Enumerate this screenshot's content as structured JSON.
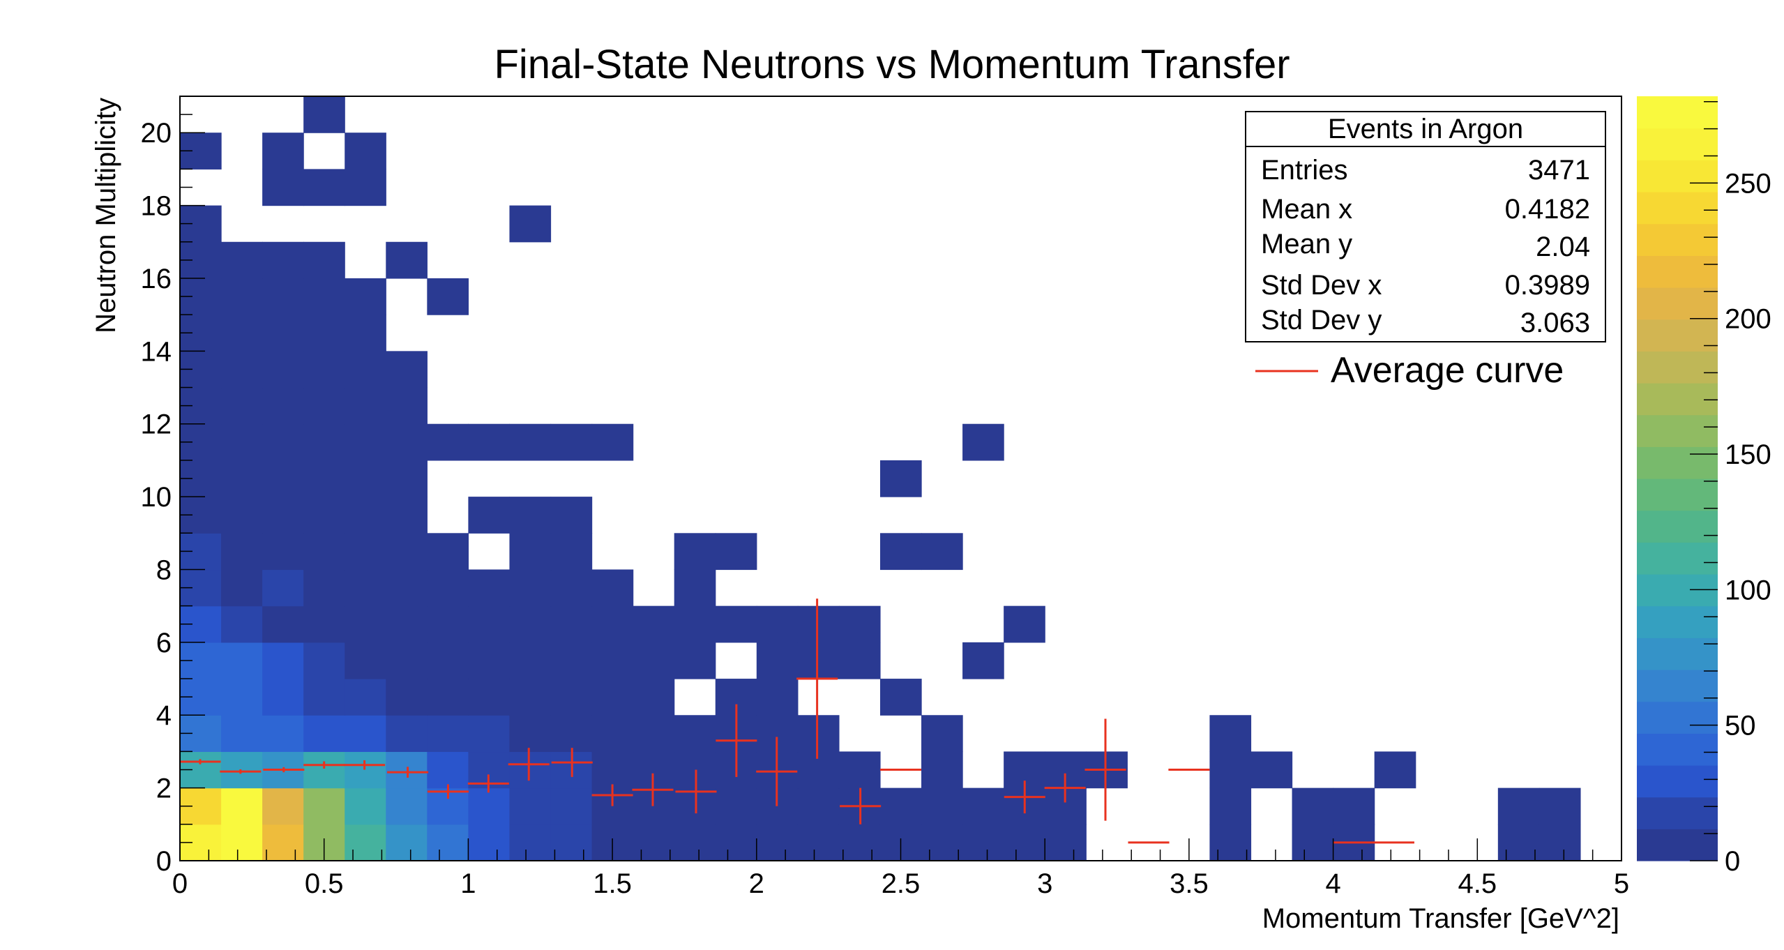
{
  "chart_data": {
    "type": "heatmap",
    "title": "Final-State Neutrons vs Momentum Transfer",
    "xlabel": "Momentum Transfer [GeV^2]",
    "ylabel": "Neutron Multiplicity",
    "xlim": [
      0,
      5
    ],
    "ylim": [
      0,
      21
    ],
    "x_bin_width": 0.142857,
    "y_bin_width": 1,
    "x_ticks": [
      0,
      0.5,
      1,
      1.5,
      2,
      2.5,
      3,
      3.5,
      4,
      4.5,
      5
    ],
    "x_tick_labels": [
      "0",
      "0.5",
      "1",
      "1.5",
      "2",
      "2.5",
      "3",
      "3.5",
      "4",
      "4.5",
      "5"
    ],
    "y_ticks": [
      0,
      2,
      4,
      6,
      8,
      10,
      12,
      14,
      16,
      18,
      20
    ],
    "y_tick_labels": [
      "0",
      "2",
      "4",
      "6",
      "8",
      "10",
      "12",
      "14",
      "16",
      "18",
      "20"
    ],
    "z_range": [
      0,
      282
    ],
    "z_ticks": [
      0,
      50,
      100,
      150,
      200,
      250
    ],
    "z_tick_labels": [
      "0",
      "50",
      "100",
      "150",
      "200",
      "250"
    ],
    "palette": [
      "#2a3a92",
      "#2a45aa",
      "#2a55cc",
      "#2e66d4",
      "#3275d3",
      "#3584cf",
      "#3593c8",
      "#35a0c0",
      "#3aabb0",
      "#45b29e",
      "#52b58a",
      "#63b87a",
      "#78ba6c",
      "#90bb62",
      "#a8ba5a",
      "#bfb757",
      "#d2b552",
      "#e2b548",
      "#eebc3c",
      "#f4c935",
      "#f7d833",
      "#f8e735",
      "#f9f23a",
      "#f9f93e"
    ],
    "bins": [
      [
        0,
        0,
        260
      ],
      [
        1,
        0,
        282
      ],
      [
        2,
        0,
        215
      ],
      [
        3,
        0,
        160
      ],
      [
        4,
        0,
        110
      ],
      [
        5,
        0,
        75
      ],
      [
        6,
        0,
        50
      ],
      [
        7,
        0,
        35
      ],
      [
        8,
        0,
        22
      ],
      [
        9,
        0,
        18
      ],
      [
        10,
        0,
        8
      ],
      [
        11,
        0,
        5
      ],
      [
        12,
        0,
        4
      ],
      [
        13,
        0,
        3
      ],
      [
        14,
        0,
        2
      ],
      [
        15,
        0,
        1
      ],
      [
        16,
        0,
        1
      ],
      [
        17,
        0,
        1
      ],
      [
        18,
        0,
        1
      ],
      [
        19,
        0,
        1
      ],
      [
        20,
        0,
        1
      ],
      [
        21,
        0,
        1
      ],
      [
        25,
        0,
        1
      ],
      [
        27,
        0,
        1
      ],
      [
        28,
        0,
        1
      ],
      [
        32,
        0,
        1
      ],
      [
        33,
        0,
        1
      ],
      [
        0,
        1,
        240
      ],
      [
        1,
        1,
        280
      ],
      [
        2,
        1,
        210
      ],
      [
        3,
        1,
        155
      ],
      [
        4,
        1,
        105
      ],
      [
        5,
        1,
        70
      ],
      [
        6,
        1,
        45
      ],
      [
        7,
        1,
        30
      ],
      [
        8,
        1,
        20
      ],
      [
        9,
        1,
        15
      ],
      [
        10,
        1,
        7
      ],
      [
        11,
        1,
        4
      ],
      [
        12,
        1,
        3
      ],
      [
        13,
        1,
        3
      ],
      [
        14,
        1,
        2
      ],
      [
        15,
        1,
        1
      ],
      [
        16,
        1,
        1
      ],
      [
        17,
        1,
        1
      ],
      [
        18,
        1,
        1
      ],
      [
        19,
        1,
        1
      ],
      [
        20,
        1,
        1
      ],
      [
        21,
        1,
        1
      ],
      [
        25,
        1,
        1
      ],
      [
        27,
        1,
        1
      ],
      [
        28,
        1,
        1
      ],
      [
        32,
        1,
        1
      ],
      [
        33,
        1,
        1
      ],
      [
        0,
        2,
        100
      ],
      [
        1,
        2,
        90
      ],
      [
        2,
        2,
        80
      ],
      [
        3,
        2,
        95
      ],
      [
        4,
        2,
        90
      ],
      [
        5,
        2,
        60
      ],
      [
        6,
        2,
        28
      ],
      [
        7,
        2,
        22
      ],
      [
        8,
        2,
        20
      ],
      [
        9,
        2,
        12
      ],
      [
        10,
        2,
        4
      ],
      [
        11,
        2,
        2
      ],
      [
        12,
        2,
        2
      ],
      [
        13,
        2,
        2
      ],
      [
        14,
        2,
        1
      ],
      [
        15,
        2,
        1
      ],
      [
        16,
        2,
        1
      ],
      [
        18,
        2,
        1
      ],
      [
        20,
        2,
        1
      ],
      [
        21,
        2,
        1
      ],
      [
        22,
        2,
        1
      ],
      [
        25,
        2,
        1
      ],
      [
        26,
        2,
        1
      ],
      [
        29,
        2,
        1
      ],
      [
        0,
        3,
        50
      ],
      [
        1,
        3,
        45
      ],
      [
        2,
        3,
        40
      ],
      [
        3,
        3,
        35
      ],
      [
        4,
        3,
        28
      ],
      [
        5,
        3,
        18
      ],
      [
        6,
        3,
        15
      ],
      [
        7,
        3,
        12
      ],
      [
        8,
        3,
        10
      ],
      [
        9,
        3,
        8
      ],
      [
        10,
        3,
        4
      ],
      [
        11,
        3,
        2
      ],
      [
        12,
        3,
        2
      ],
      [
        13,
        3,
        1
      ],
      [
        14,
        3,
        1
      ],
      [
        15,
        3,
        1
      ],
      [
        18,
        3,
        1
      ],
      [
        25,
        3,
        1
      ],
      [
        0,
        4,
        45
      ],
      [
        1,
        4,
        40
      ],
      [
        2,
        4,
        28
      ],
      [
        3,
        4,
        20
      ],
      [
        4,
        4,
        12
      ],
      [
        5,
        4,
        10
      ],
      [
        6,
        4,
        8
      ],
      [
        7,
        4,
        6
      ],
      [
        8,
        4,
        5
      ],
      [
        9,
        4,
        3
      ],
      [
        10,
        4,
        2
      ],
      [
        11,
        4,
        1
      ],
      [
        13,
        4,
        1
      ],
      [
        14,
        4,
        1
      ],
      [
        17,
        4,
        1
      ],
      [
        0,
        5,
        40
      ],
      [
        1,
        5,
        36
      ],
      [
        2,
        5,
        24
      ],
      [
        3,
        5,
        12
      ],
      [
        4,
        5,
        10
      ],
      [
        5,
        5,
        7
      ],
      [
        6,
        5,
        5
      ],
      [
        7,
        5,
        4
      ],
      [
        8,
        5,
        3
      ],
      [
        9,
        5,
        2
      ],
      [
        10,
        5,
        1
      ],
      [
        11,
        5,
        1
      ],
      [
        12,
        5,
        1
      ],
      [
        14,
        5,
        1
      ],
      [
        15,
        5,
        1
      ],
      [
        16,
        5,
        1
      ],
      [
        19,
        5,
        1
      ],
      [
        0,
        6,
        28
      ],
      [
        1,
        6,
        22
      ],
      [
        2,
        6,
        10
      ],
      [
        3,
        6,
        8
      ],
      [
        4,
        6,
        6
      ],
      [
        5,
        6,
        5
      ],
      [
        6,
        6,
        4
      ],
      [
        7,
        6,
        3
      ],
      [
        8,
        6,
        2
      ],
      [
        9,
        6,
        1
      ],
      [
        10,
        6,
        1
      ],
      [
        11,
        6,
        1
      ],
      [
        12,
        6,
        1
      ],
      [
        13,
        6,
        1
      ],
      [
        14,
        6,
        1
      ],
      [
        15,
        6,
        1
      ],
      [
        16,
        6,
        1
      ],
      [
        20,
        6,
        1
      ],
      [
        0,
        7,
        12
      ],
      [
        1,
        7,
        10
      ],
      [
        2,
        7,
        22
      ],
      [
        3,
        7,
        8
      ],
      [
        4,
        7,
        6
      ],
      [
        5,
        7,
        4
      ],
      [
        6,
        7,
        3
      ],
      [
        7,
        7,
        2
      ],
      [
        8,
        7,
        1
      ],
      [
        9,
        7,
        1
      ],
      [
        10,
        7,
        1
      ],
      [
        12,
        7,
        1
      ],
      [
        0,
        8,
        18
      ],
      [
        1,
        8,
        8
      ],
      [
        2,
        8,
        6
      ],
      [
        3,
        8,
        5
      ],
      [
        4,
        8,
        4
      ],
      [
        5,
        8,
        3
      ],
      [
        6,
        8,
        2
      ],
      [
        8,
        8,
        1
      ],
      [
        9,
        8,
        1
      ],
      [
        12,
        8,
        1
      ],
      [
        13,
        8,
        1
      ],
      [
        17,
        8,
        1
      ],
      [
        18,
        8,
        1
      ],
      [
        0,
        9,
        6
      ],
      [
        1,
        9,
        5
      ],
      [
        2,
        9,
        4
      ],
      [
        3,
        9,
        3
      ],
      [
        4,
        9,
        3
      ],
      [
        5,
        9,
        2
      ],
      [
        7,
        9,
        1
      ],
      [
        8,
        9,
        1
      ],
      [
        9,
        9,
        1
      ],
      [
        0,
        10,
        4
      ],
      [
        1,
        10,
        4
      ],
      [
        2,
        10,
        3
      ],
      [
        3,
        10,
        2
      ],
      [
        4,
        10,
        2
      ],
      [
        5,
        10,
        1
      ],
      [
        17,
        10,
        1
      ],
      [
        0,
        11,
        3
      ],
      [
        1,
        11,
        3
      ],
      [
        2,
        11,
        2
      ],
      [
        3,
        11,
        2
      ],
      [
        4,
        11,
        2
      ],
      [
        5,
        11,
        1
      ],
      [
        6,
        11,
        1
      ],
      [
        7,
        11,
        1
      ],
      [
        8,
        11,
        1
      ],
      [
        9,
        11,
        1
      ],
      [
        10,
        11,
        1
      ],
      [
        19,
        11,
        1
      ],
      [
        0,
        12,
        3
      ],
      [
        1,
        12,
        2
      ],
      [
        2,
        12,
        2
      ],
      [
        3,
        12,
        1
      ],
      [
        4,
        12,
        1
      ],
      [
        5,
        12,
        1
      ],
      [
        0,
        13,
        2
      ],
      [
        1,
        13,
        2
      ],
      [
        2,
        13,
        2
      ],
      [
        3,
        13,
        1
      ],
      [
        4,
        13,
        1
      ],
      [
        5,
        13,
        1
      ],
      [
        0,
        14,
        2
      ],
      [
        1,
        14,
        1
      ],
      [
        2,
        14,
        1
      ],
      [
        3,
        14,
        1
      ],
      [
        4,
        14,
        1
      ],
      [
        0,
        15,
        1
      ],
      [
        1,
        15,
        1
      ],
      [
        2,
        15,
        1
      ],
      [
        3,
        15,
        1
      ],
      [
        4,
        15,
        1
      ],
      [
        6,
        15,
        1
      ],
      [
        0,
        16,
        1
      ],
      [
        1,
        16,
        1
      ],
      [
        2,
        16,
        1
      ],
      [
        3,
        16,
        1
      ],
      [
        5,
        16,
        1
      ],
      [
        0,
        17,
        1
      ],
      [
        8,
        17,
        1
      ],
      [
        0,
        19,
        1
      ],
      [
        2,
        19,
        1
      ],
      [
        4,
        19,
        1
      ],
      [
        2,
        18,
        1
      ],
      [
        3,
        18,
        1
      ],
      [
        4,
        18,
        1
      ],
      [
        3,
        20,
        1
      ]
    ],
    "profile": {
      "name": "Average curve",
      "color": "#e8321f",
      "points": [
        {
          "x": 0.07,
          "y": 2.72,
          "ey": 0.07
        },
        {
          "x": 0.21,
          "y": 2.45,
          "ey": 0.06
        },
        {
          "x": 0.36,
          "y": 2.5,
          "ey": 0.07
        },
        {
          "x": 0.5,
          "y": 2.63,
          "ey": 0.1
        },
        {
          "x": 0.64,
          "y": 2.63,
          "ey": 0.13
        },
        {
          "x": 0.79,
          "y": 2.43,
          "ey": 0.15
        },
        {
          "x": 0.93,
          "y": 1.9,
          "ey": 0.2
        },
        {
          "x": 1.07,
          "y": 2.12,
          "ey": 0.25
        },
        {
          "x": 1.21,
          "y": 2.65,
          "ey": 0.45
        },
        {
          "x": 1.36,
          "y": 2.7,
          "ey": 0.4
        },
        {
          "x": 1.5,
          "y": 1.8,
          "ey": 0.3
        },
        {
          "x": 1.64,
          "y": 1.95,
          "ey": 0.45
        },
        {
          "x": 1.79,
          "y": 1.9,
          "ey": 0.6
        },
        {
          "x": 1.93,
          "y": 3.3,
          "ey": 1.0
        },
        {
          "x": 2.07,
          "y": 2.45,
          "ey": 0.95
        },
        {
          "x": 2.21,
          "y": 5.0,
          "ey": 2.2
        },
        {
          "x": 2.36,
          "y": 1.5,
          "ey": 0.5
        },
        {
          "x": 2.5,
          "y": 2.5,
          "ey": 0
        },
        {
          "x": 2.93,
          "y": 1.75,
          "ey": 0.45
        },
        {
          "x": 3.07,
          "y": 2.0,
          "ey": 0.4
        },
        {
          "x": 3.21,
          "y": 2.5,
          "ey": 1.4
        },
        {
          "x": 3.36,
          "y": 0.5,
          "ey": 0
        },
        {
          "x": 3.5,
          "y": 2.5,
          "ey": 0
        },
        {
          "x": 4.07,
          "y": 0.5,
          "ey": 0
        },
        {
          "x": 4.21,
          "y": 0.5,
          "ey": 0
        }
      ]
    },
    "stats": {
      "title": "Events in Argon",
      "rows": [
        {
          "label": "Entries",
          "value": "3471"
        },
        {
          "label": "Mean x",
          "value": "0.4182"
        },
        {
          "label": "Mean y",
          "value": "2.04"
        },
        {
          "label": "Std Dev x",
          "value": "0.3989"
        },
        {
          "label": "Std Dev y",
          "value": "3.063"
        }
      ]
    },
    "legend": {
      "placement": "top-right",
      "entries": [
        {
          "label": "Average curve",
          "color": "#e8321f"
        }
      ]
    }
  }
}
